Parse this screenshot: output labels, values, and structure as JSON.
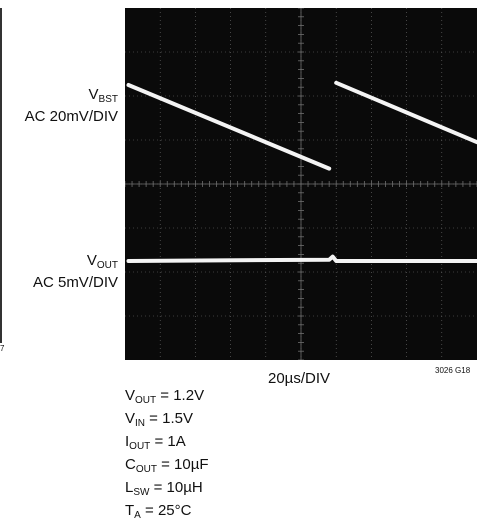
{
  "chart_data": {
    "type": "line",
    "title": "",
    "xlabel": "20µs/DIV",
    "ylabel": "",
    "figure_id": "3026 G18",
    "edge_fragment": "7",
    "grid": true,
    "divisions": {
      "x": 10,
      "y": 8
    },
    "channels": [
      {
        "name_main": "V",
        "name_sub": "BST",
        "scale": "AC 20mV/DIV",
        "segments": [
          {
            "points": [
              [
                0.1,
                6.25
              ],
              [
                5.8,
                4.35
              ]
            ]
          },
          {
            "points": [
              [
                6.0,
                6.3
              ],
              [
                10.0,
                4.95
              ]
            ]
          }
        ]
      },
      {
        "name_main": "V",
        "name_sub": "OUT",
        "scale": "AC 5mV/DIV",
        "segments": [
          {
            "points": [
              [
                0.1,
                2.25
              ],
              [
                5.8,
                2.28
              ],
              [
                5.9,
                2.35
              ],
              [
                6.0,
                2.25
              ],
              [
                10.0,
                2.25
              ]
            ]
          }
        ]
      }
    ]
  },
  "conditions": [
    {
      "main": "V",
      "sub": "OUT",
      "value": " = 1.2V"
    },
    {
      "main": "V",
      "sub": "IN",
      "value": " = 1.5V"
    },
    {
      "main": "I",
      "sub": "OUT",
      "value": " = 1A"
    },
    {
      "main": "C",
      "sub": "OUT",
      "value": " = 10µF"
    },
    {
      "main": "L",
      "sub": "SW",
      "value": " = 10µH"
    },
    {
      "main": "T",
      "sub": "A",
      "value": " = 25°C"
    }
  ],
  "colors": {
    "screen": "#0a0a0a",
    "grid": "#6e6e6e",
    "trace": "#f4f4f4"
  }
}
